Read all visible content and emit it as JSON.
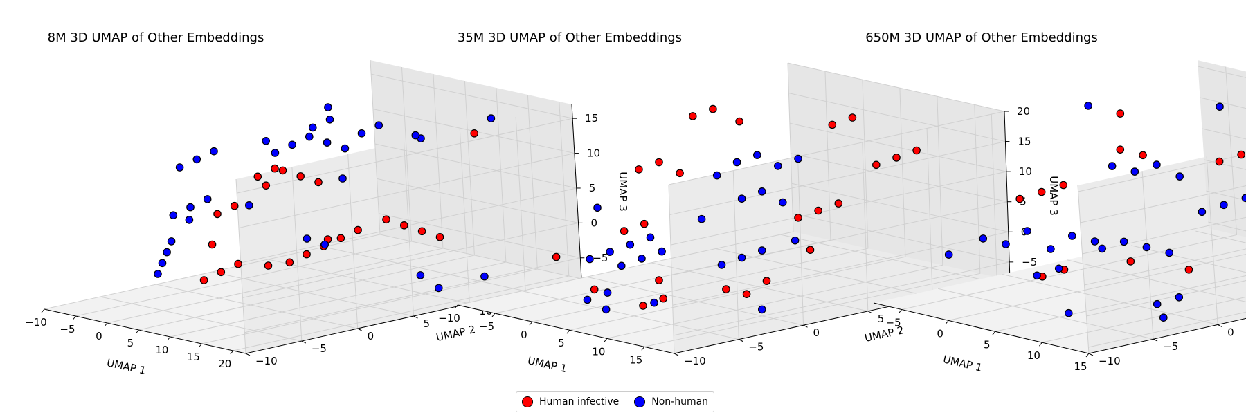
{
  "chart_data": [
    {
      "type": "scatter",
      "title": "8M 3D UMAP of Other Embeddings",
      "xlabel": "UMAP 1",
      "ylabel": "UMAP 2",
      "zlabel": "UMAP 3",
      "xlim": [
        -10,
        22
      ],
      "ylim": [
        -10,
        20
      ],
      "zlim": [
        -8,
        17
      ],
      "xticks": [
        "−10",
        "−5",
        "0",
        "5",
        "10",
        "15",
        "20"
      ],
      "yticks": [
        "−10",
        "−5",
        "0",
        "5",
        "10",
        "15",
        "20"
      ],
      "zticks": [
        "−5",
        "0",
        "5",
        "10",
        "15"
      ],
      "grid": true,
      "series": [
        {
          "name": "Human infective",
          "color": "#ff0000",
          "points": [
            [
              15,
              -2,
              14
            ],
            [
              16,
              -1,
              13
            ],
            [
              14,
              -3,
              12
            ],
            [
              17,
              0,
              12
            ],
            [
              8,
              2,
              -2
            ],
            [
              9,
              3,
              -1
            ],
            [
              10,
              4,
              0
            ],
            [
              11,
              5,
              1
            ],
            [
              12,
              6,
              2
            ],
            [
              5,
              -4,
              -3
            ],
            [
              6,
              -3,
              -2
            ],
            [
              7,
              -2,
              -1
            ],
            [
              -5,
              3,
              2
            ],
            [
              -4,
              4,
              3
            ],
            [
              13,
              8,
              3
            ],
            [
              14,
              9,
              2
            ],
            [
              15,
              10,
              1
            ],
            [
              16,
              11,
              0
            ],
            [
              0,
              4,
              8
            ],
            [
              1,
              5,
              9
            ],
            [
              17,
              14,
              14
            ],
            [
              3,
              -2,
              1
            ],
            [
              10,
              -1,
              -1
            ],
            [
              18,
              0,
              4
            ]
          ]
        },
        {
          "name": "Non-human",
          "color": "#0000ff",
          "points": [
            [
              4,
              5,
              13
            ],
            [
              5,
              6,
              14
            ],
            [
              6,
              7,
              13
            ],
            [
              7,
              8,
              12
            ],
            [
              8,
              9,
              14
            ],
            [
              3,
              4,
              12
            ],
            [
              9,
              10,
              15
            ],
            [
              -6,
              2,
              10
            ],
            [
              -5,
              3,
              11
            ],
            [
              -7,
              1,
              9
            ],
            [
              -8,
              0,
              -3
            ],
            [
              -7,
              -1,
              -4
            ],
            [
              -6,
              -2,
              -5
            ],
            [
              -9,
              1,
              -2
            ],
            [
              2,
              8,
              14
            ],
            [
              3,
              9,
              15
            ],
            [
              12,
              12,
              13
            ],
            [
              -3,
              -2,
              4
            ],
            [
              -2,
              -1,
              5
            ],
            [
              -1,
              0,
              6
            ],
            [
              18,
              15,
              16
            ],
            [
              21,
              12,
              -5
            ],
            [
              11,
              2,
              2
            ],
            [
              12,
              3,
              1
            ],
            [
              5,
              -5,
              6
            ],
            [
              1,
              10,
              16
            ],
            [
              -2,
              6,
              12
            ],
            [
              19,
              9,
              -6
            ],
            [
              18,
              8,
              -4
            ],
            [
              2,
              2,
              5
            ],
            [
              10,
              6,
              9
            ],
            [
              13,
              11,
              14
            ]
          ]
        }
      ]
    },
    {
      "type": "scatter",
      "title": "35M 3D UMAP of Other Embeddings",
      "xlabel": "UMAP 1",
      "ylabel": "UMAP 2",
      "zlabel": "UMAP 3",
      "xlim": [
        -10,
        19
      ],
      "ylim": [
        -10,
        16
      ],
      "zlim": [
        -8,
        20
      ],
      "xticks": [
        "−10",
        "−5",
        "0",
        "5",
        "10",
        "15"
      ],
      "yticks": [
        "−10",
        "−5",
        "0",
        "5",
        "10",
        "15"
      ],
      "zticks": [
        "−5",
        "0",
        "5",
        "10",
        "15",
        "20"
      ],
      "grid": true,
      "series": [
        {
          "name": "Human infective",
          "color": "#ff0000",
          "points": [
            [
              -2,
              4,
              19
            ],
            [
              -1,
              5,
              20
            ],
            [
              8,
              9,
              18
            ],
            [
              9,
              10,
              19
            ],
            [
              -6,
              2,
              10
            ],
            [
              -5,
              3,
              11
            ],
            [
              -4,
              4,
              9
            ],
            [
              12,
              10,
              12
            ],
            [
              13,
              11,
              13
            ],
            [
              14,
              12,
              14
            ],
            [
              10,
              5,
              5
            ],
            [
              11,
              6,
              6
            ],
            [
              12,
              7,
              7
            ],
            [
              -3,
              -1,
              2
            ],
            [
              -2,
              0,
              3
            ],
            [
              14,
              -3,
              -2
            ],
            [
              15,
              -2,
              -3
            ],
            [
              16,
              -1,
              -1
            ],
            [
              8,
              -6,
              -5
            ],
            [
              9,
              -5,
              -4
            ],
            [
              5,
              -3,
              -3
            ],
            [
              -7,
              -4,
              -2
            ],
            [
              -1,
              7,
              17
            ],
            [
              15,
              3,
              2
            ],
            [
              -2,
              -4,
              -6
            ]
          ]
        },
        {
          "name": "Non-human",
          "color": "#0000ff",
          "points": [
            [
              2,
              5,
              12
            ],
            [
              3,
              6,
              13
            ],
            [
              4,
              7,
              11
            ],
            [
              5,
              8,
              12
            ],
            [
              1,
              4,
              10
            ],
            [
              6,
              3,
              8
            ],
            [
              7,
              4,
              9
            ],
            [
              8,
              5,
              7
            ],
            [
              -6,
              -2,
              -3
            ],
            [
              -5,
              -1,
              -2
            ],
            [
              -4,
              0,
              -1
            ],
            [
              -3,
              1,
              0
            ],
            [
              0,
              -3,
              -2
            ],
            [
              1,
              -2,
              -1
            ],
            [
              2,
              -1,
              0
            ],
            [
              -3,
              -4,
              -8
            ],
            [
              -2,
              -3,
              -7
            ],
            [
              3,
              -6,
              -7
            ],
            [
              10,
              -1,
              0
            ],
            [
              11,
              0,
              1
            ],
            [
              12,
              1,
              2
            ],
            [
              17,
              -2,
              -5
            ],
            [
              -10,
              1,
              3
            ],
            [
              6,
              -4,
              -6
            ],
            [
              4,
              1,
              5
            ],
            [
              13,
              3,
              3
            ]
          ]
        }
      ]
    },
    {
      "type": "scatter",
      "title": "650M 3D UMAP of Other Embeddings",
      "xlabel": "UMAP 1",
      "ylabel": "UMAP 2",
      "zlabel": "UMAP 3",
      "xlim": [
        -8,
        15
      ],
      "ylim": [
        -10,
        16
      ],
      "zlim": [
        -11,
        16
      ],
      "xticks": [
        "−5",
        "0",
        "5",
        "10",
        "15"
      ],
      "yticks": [
        "−10",
        "−5",
        "0",
        "5",
        "10",
        "15"
      ],
      "zticks": [
        "−10",
        "−5",
        "0",
        "5",
        "10",
        "15"
      ],
      "grid": true,
      "series": [
        {
          "name": "Human infective",
          "color": "#ff0000",
          "points": [
            [
              -6,
              2,
              2
            ],
            [
              -5,
              3,
              3
            ],
            [
              -7,
              1,
              1
            ],
            [
              5,
              8,
              8
            ],
            [
              6,
              9,
              9
            ],
            [
              7,
              10,
              10
            ],
            [
              8,
              11,
              8
            ],
            [
              12,
              12,
              6
            ],
            [
              13,
              13,
              5
            ],
            [
              14,
              14,
              4
            ],
            [
              15,
              11,
              -3
            ],
            [
              1,
              5,
              9
            ],
            [
              0,
              4,
              10
            ],
            [
              2,
              -4,
              -6
            ],
            [
              3,
              -3,
              -5
            ],
            [
              6,
              0,
              -4
            ],
            [
              11,
              9,
              7
            ],
            [
              -4,
              7,
              13
            ],
            [
              8,
              3,
              -6
            ]
          ]
        },
        {
          "name": "Non-human",
          "color": "#0000ff",
          "points": [
            [
              -7,
              -2,
              -4
            ],
            [
              -6,
              -1,
              -5
            ],
            [
              -5,
              0,
              -3
            ],
            [
              -4,
              1,
              -6
            ],
            [
              -3,
              2,
              -4
            ],
            [
              -2,
              3,
              -5
            ],
            [
              0,
              -3,
              -7
            ],
            [
              1,
              -2,
              -6
            ],
            [
              3,
              0,
              -3
            ],
            [
              4,
              1,
              -2
            ],
            [
              5,
              2,
              -3
            ],
            [
              6,
              3,
              -4
            ],
            [
              7,
              5,
              2
            ],
            [
              8,
              6,
              3
            ],
            [
              9,
              7,
              4
            ],
            [
              -1,
              4,
              7
            ],
            [
              0,
              5,
              6
            ],
            [
              1,
              6,
              7
            ],
            [
              2,
              7,
              5
            ],
            [
              10,
              -1,
              -9
            ],
            [
              11,
              0,
              -8
            ],
            [
              -6,
              6,
              14
            ],
            [
              4,
              9,
              16
            ],
            [
              14,
              10,
              1
            ],
            [
              -8,
              -4,
              -6
            ],
            [
              12,
              -2,
              -10
            ],
            [
              6,
              -5,
              -10
            ]
          ]
        }
      ]
    }
  ],
  "legend": {
    "items": [
      {
        "label": "Human infective",
        "color": "#ff0000"
      },
      {
        "label": "Non-human",
        "color": "#0000ff"
      }
    ]
  }
}
